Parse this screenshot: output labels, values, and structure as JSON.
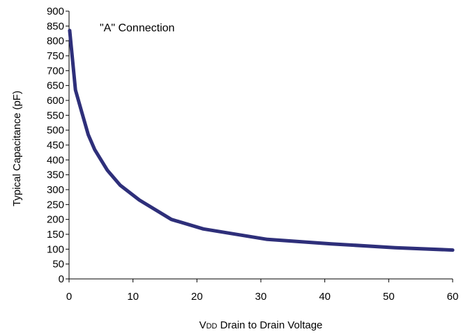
{
  "chart_data": {
    "type": "line",
    "title": "",
    "annotation": "\"A\" Connection",
    "xlabel_prefix": "V",
    "xlabel_subscript": "DD",
    "xlabel_rest": " Drain to Drain Voltage",
    "ylabel": "Typical Capacitance (pF)",
    "xlim": [
      0,
      60
    ],
    "ylim": [
      0,
      900
    ],
    "x_ticks": [
      0,
      10,
      20,
      30,
      40,
      50,
      60
    ],
    "y_ticks": [
      0,
      50,
      100,
      150,
      200,
      250,
      300,
      350,
      400,
      450,
      500,
      550,
      600,
      650,
      700,
      750,
      800,
      850,
      900
    ],
    "grid": false,
    "legend": "none",
    "series": [
      {
        "color": "#2e2f7a",
        "x": [
          0.1,
          1,
          2,
          3,
          4,
          6,
          8,
          11,
          16,
          21,
          31,
          41,
          51,
          60
        ],
        "y": [
          835,
          635,
          560,
          485,
          435,
          365,
          315,
          265,
          200,
          168,
          133,
          118,
          105,
          97
        ]
      }
    ]
  }
}
